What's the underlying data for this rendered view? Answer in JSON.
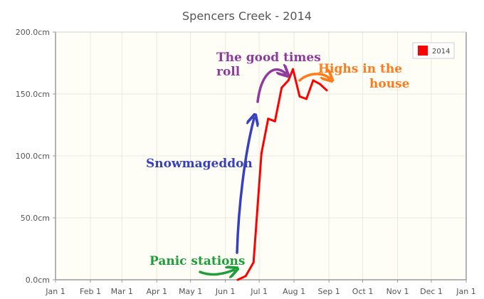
{
  "chart_data": {
    "type": "line",
    "title": "Spencers Creek - 2014",
    "xlabel": "",
    "ylabel": "",
    "x_ticks": [
      "Jan 1",
      "Feb 1",
      "Mar 1",
      "Apr 1",
      "May 1",
      "Jun 1",
      "Jul 1",
      "Aug 1",
      "Sep 1",
      "Oct 1",
      "Nov 1",
      "Dec 1",
      "Jan 1"
    ],
    "y_ticks": [
      "0.0cm",
      "50.0cm",
      "100.0cm",
      "150.0cm",
      "200.0cm"
    ],
    "ylim": [
      0,
      200
    ],
    "grid": "vertical gridlines plus horizontal at tick values",
    "legend_position": "top-right",
    "series": [
      {
        "name": "2014",
        "color": "#ff0000",
        "points": [
          {
            "x": "2014-06-12",
            "y": 0
          },
          {
            "x": "2014-06-19",
            "y": 3
          },
          {
            "x": "2014-06-26",
            "y": 14
          },
          {
            "x": "2014-07-03",
            "y": 102
          },
          {
            "x": "2014-07-09",
            "y": 130
          },
          {
            "x": "2014-07-15",
            "y": 128
          },
          {
            "x": "2014-07-21",
            "y": 155
          },
          {
            "x": "2014-07-27",
            "y": 161
          },
          {
            "x": "2014-07-31",
            "y": 170
          },
          {
            "x": "2014-08-06",
            "y": 148
          },
          {
            "x": "2014-08-12",
            "y": 146
          },
          {
            "x": "2014-08-18",
            "y": 161
          },
          {
            "x": "2014-08-24",
            "y": 158
          },
          {
            "x": "2014-08-30",
            "y": 153
          }
        ]
      }
    ],
    "annotations": [
      {
        "text": "Panic stations",
        "color": "#1e9e3a"
      },
      {
        "text": "Snowmageddon",
        "color": "#3640c0"
      },
      {
        "text": "The good times",
        "color": "#8e3a9e"
      },
      {
        "text": "roll",
        "color": "#8e3a9e"
      },
      {
        "text": "Highs in the",
        "color": "#ff7a1a"
      },
      {
        "text": "house",
        "color": "#ff7a1a"
      }
    ]
  }
}
